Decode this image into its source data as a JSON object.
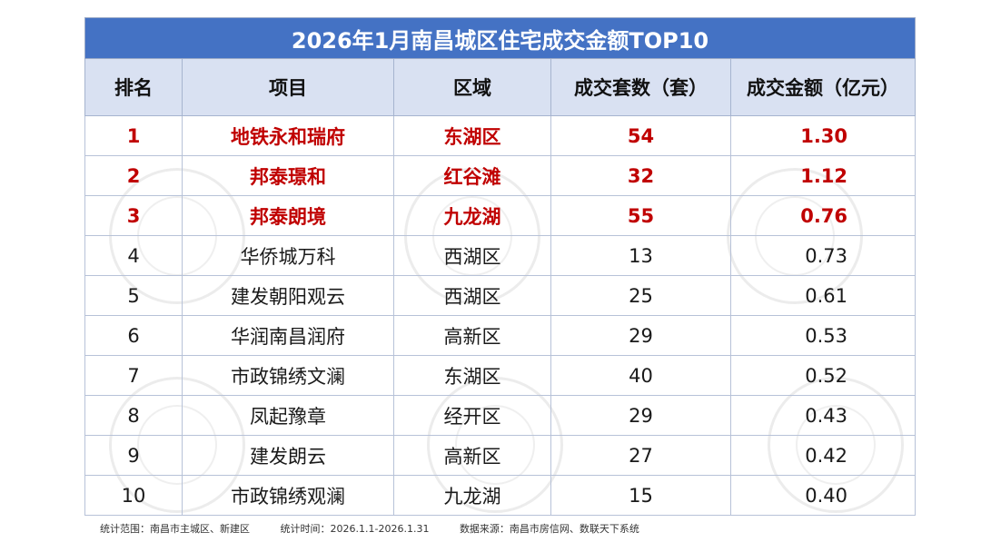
{
  "title": "2026年1月南昌城区住宅成交金额TOP10",
  "headers": [
    "排名",
    "项目",
    "区域",
    "成交套数（套）",
    "成交金额（亿元）"
  ],
  "highlight_color": "#c00000",
  "title_bg_color": "#4472c4",
  "header_bg_color": "#d9e1f2",
  "rows": [
    {
      "rank": "1",
      "project": "地铁永和瑞府",
      "area": "东湖区",
      "units": "54",
      "amount": "1.30"
    },
    {
      "rank": "2",
      "project": "邦泰璟和",
      "area": "红谷滩",
      "units": "32",
      "amount": "1.12"
    },
    {
      "rank": "3",
      "project": "邦泰朗境",
      "area": "九龙湖",
      "units": "55",
      "amount": "0.76"
    },
    {
      "rank": "4",
      "project": "华侨城万科",
      "area": "西湖区",
      "units": "13",
      "amount": "0.73"
    },
    {
      "rank": "5",
      "project": "建发朝阳观云",
      "area": "西湖区",
      "units": "25",
      "amount": "0.61"
    },
    {
      "rank": "6",
      "project": "华润南昌润府",
      "area": "高新区",
      "units": "29",
      "amount": "0.53"
    },
    {
      "rank": "7",
      "project": "市政锦绣文澜",
      "area": "东湖区",
      "units": "40",
      "amount": "0.52"
    },
    {
      "rank": "8",
      "project": "凤起豫章",
      "area": "经开区",
      "units": "29",
      "amount": "0.43"
    },
    {
      "rank": "9",
      "project": "建发朗云",
      "area": "高新区",
      "units": "27",
      "amount": "0.42"
    },
    {
      "rank": "10",
      "project": "市政锦绣观澜",
      "area": "九龙湖",
      "units": "15",
      "amount": "0.40"
    }
  ],
  "footer": {
    "scope": "统计范围：南昌市主城区、新建区",
    "period": "统计时间：2026.1.1-2026.1.31",
    "source": "数据来源：南昌市房信网、数联天下系统"
  },
  "chart_data": {
    "type": "table",
    "title": "2026年1月南昌城区住宅成交金额TOP10",
    "columns": [
      "排名",
      "项目",
      "区域",
      "成交套数（套）",
      "成交金额（亿元）"
    ],
    "rows": [
      [
        1,
        "地铁永和瑞府",
        "东湖区",
        54,
        1.3
      ],
      [
        2,
        "邦泰璟和",
        "红谷滩",
        32,
        1.12
      ],
      [
        3,
        "邦泰朗境",
        "九龙湖",
        55,
        0.76
      ],
      [
        4,
        "华侨城万科",
        "西湖区",
        13,
        0.73
      ],
      [
        5,
        "建发朝阳观云",
        "西湖区",
        25,
        0.61
      ],
      [
        6,
        "华润南昌润府",
        "高新区",
        29,
        0.53
      ],
      [
        7,
        "市政锦绣文澜",
        "东湖区",
        40,
        0.52
      ],
      [
        8,
        "凤起豫章",
        "经开区",
        29,
        0.43
      ],
      [
        9,
        "建发朗云",
        "高新区",
        27,
        0.42
      ],
      [
        10,
        "市政锦绣观澜",
        "九龙湖",
        15,
        0.4
      ]
    ],
    "highlighted_rows": [
      1,
      2,
      3
    ]
  }
}
